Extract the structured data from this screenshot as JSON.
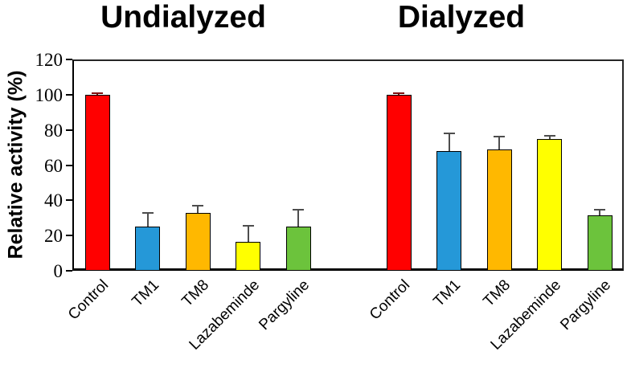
{
  "chart_data": {
    "type": "bar",
    "title": "",
    "ylabel": "Relative activity (%)",
    "xlabel": "",
    "ylim": [
      0,
      120
    ],
    "ytick_step": 20,
    "yticks": [
      "0",
      "20",
      "40",
      "60",
      "80",
      "100",
      "120"
    ],
    "grid": false,
    "legend": "none",
    "categories": [
      "Control",
      "TM1",
      "TM8",
      "Lazabeminde",
      "Pargyline"
    ],
    "groups": [
      {
        "label": "Undialyzed",
        "values": [
          100,
          25,
          33,
          16.5,
          25
        ],
        "errors_plus": [
          1,
          8,
          4,
          9,
          9.5
        ]
      },
      {
        "label": "Dialyzed",
        "values": [
          100,
          68,
          69,
          75,
          31.5
        ],
        "errors_plus": [
          1,
          10,
          7,
          1.5,
          3
        ]
      }
    ],
    "bar_colors": [
      "#ff0000",
      "#2598d8",
      "#ffb800",
      "#ffff00",
      "#6cc33c"
    ],
    "bar_outline_color": "#000000",
    "error_bar_color": "#4d4d4d",
    "control_error_bar_color": "#7f1010"
  }
}
